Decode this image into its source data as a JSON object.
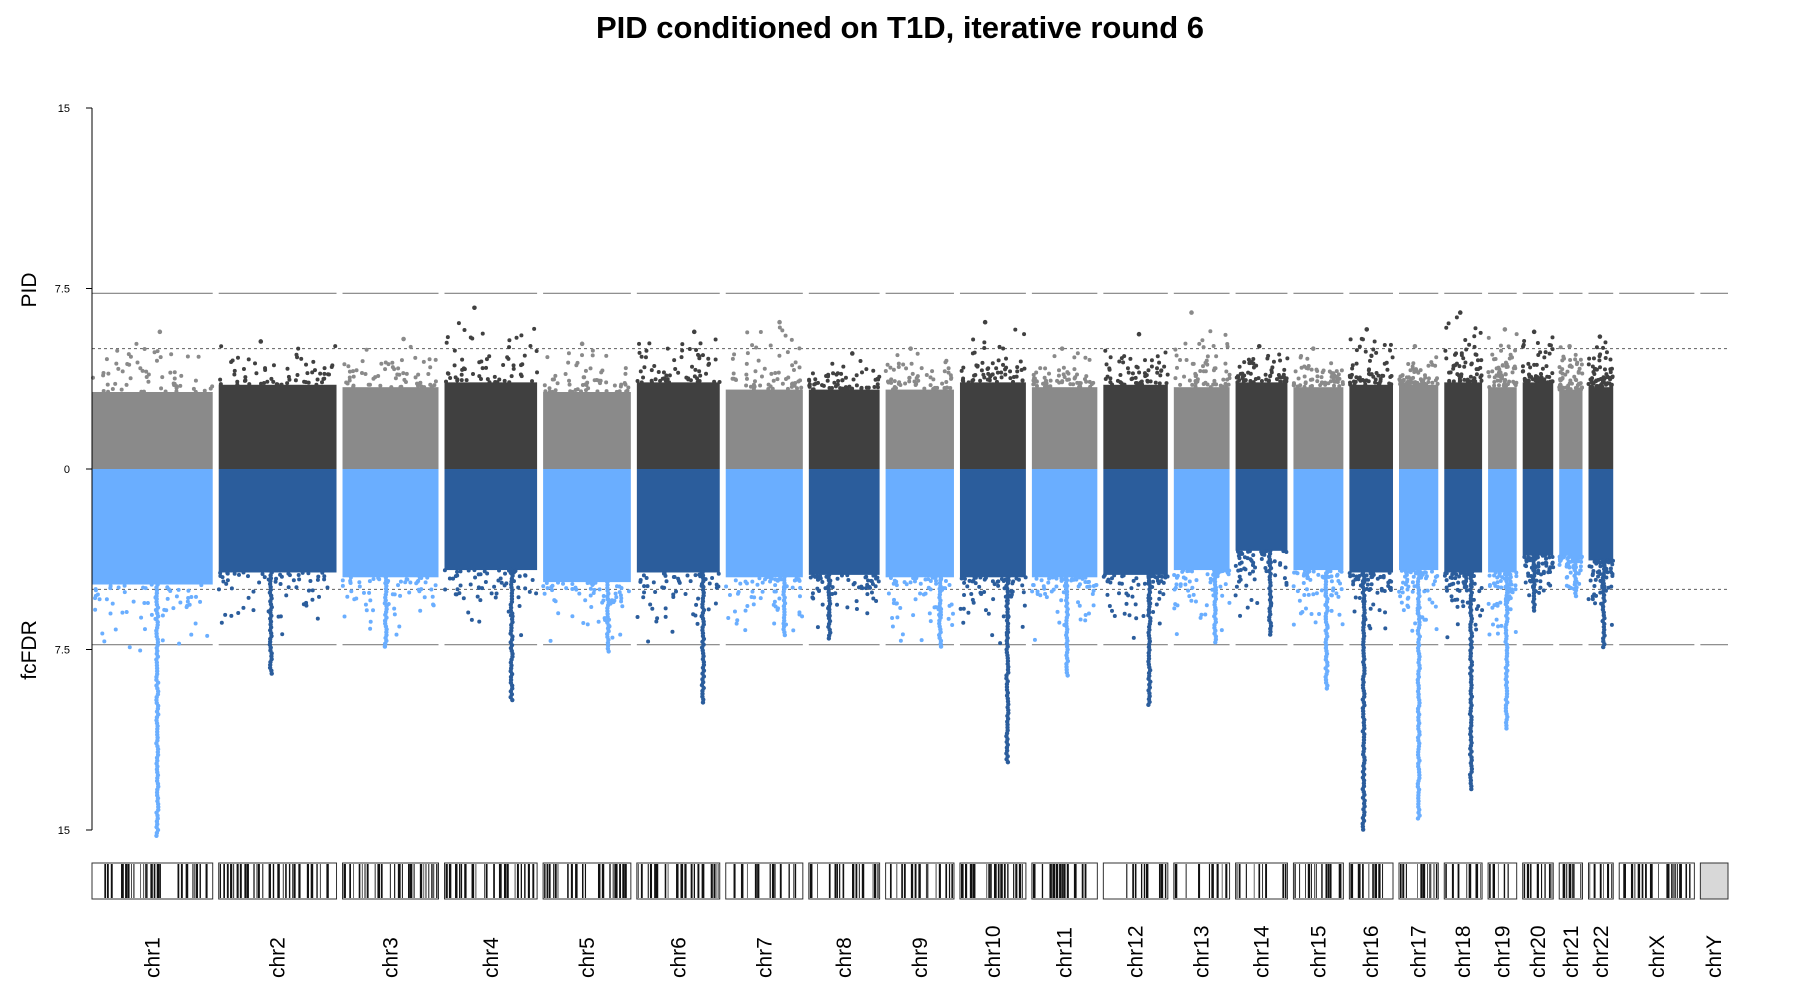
{
  "chart_data": {
    "type": "scatter",
    "title": "PID conditioned on T1D, iterative round 6",
    "top_label": "PID",
    "bottom_label": "fcFDR",
    "ylim_top": [
      0,
      15
    ],
    "ylim_bottom": [
      0,
      15
    ],
    "y_ticks": [
      "0",
      "7.5",
      "15"
    ],
    "y_tick_values": [
      0,
      7.5,
      15
    ],
    "thresholds": {
      "top_dashed": 7.3,
      "top_dotted": 5.0,
      "bottom_dashed": 7.3,
      "bottom_dotted": 5.0
    },
    "colors": {
      "top_light": "#8a8a8a",
      "top_dark": "#404040",
      "bottom_light": "#6aaeff",
      "bottom_dark": "#2b5d9c",
      "threshold_line": "#808080"
    },
    "chromosomes": [
      {
        "label": "chr1",
        "top_max": 5.7,
        "top_band": 3.2,
        "bottom_max": 15.3,
        "bottom_band": 4.8
      },
      {
        "label": "chr2",
        "top_max": 5.3,
        "top_band": 3.5,
        "bottom_max": 8.6,
        "bottom_band": 4.3
      },
      {
        "label": "chr3",
        "top_max": 5.4,
        "top_band": 3.4,
        "bottom_max": 7.4,
        "bottom_band": 4.5
      },
      {
        "label": "chr4",
        "top_max": 6.7,
        "top_band": 3.6,
        "bottom_max": 9.6,
        "bottom_band": 4.2
      },
      {
        "label": "chr5",
        "top_max": 5.2,
        "top_band": 3.2,
        "bottom_max": 7.6,
        "bottom_band": 4.7
      },
      {
        "label": "chr6",
        "top_max": 5.7,
        "top_band": 3.6,
        "bottom_max": 9.7,
        "bottom_band": 4.3
      },
      {
        "label": "chr7",
        "top_max": 6.1,
        "top_band": 3.3,
        "bottom_max": 7.0,
        "bottom_band": 4.5
      },
      {
        "label": "chr8",
        "top_max": 4.8,
        "top_band": 3.3,
        "bottom_max": 7.1,
        "bottom_band": 4.4
      },
      {
        "label": "chr9",
        "top_max": 5.0,
        "top_band": 3.3,
        "bottom_max": 7.5,
        "bottom_band": 4.5
      },
      {
        "label": "chr10",
        "top_max": 6.1,
        "top_band": 3.6,
        "bottom_max": 12.2,
        "bottom_band": 4.5
      },
      {
        "label": "chr11",
        "top_max": 5.0,
        "top_band": 3.4,
        "bottom_max": 8.6,
        "bottom_band": 4.5
      },
      {
        "label": "chr12",
        "top_max": 5.6,
        "top_band": 3.5,
        "bottom_max": 9.9,
        "bottom_band": 4.4
      },
      {
        "label": "chr13",
        "top_max": 6.5,
        "top_band": 3.4,
        "bottom_max": 7.3,
        "bottom_band": 4.2
      },
      {
        "label": "chr14",
        "top_max": 5.1,
        "top_band": 3.6,
        "bottom_max": 6.9,
        "bottom_band": 3.4
      },
      {
        "label": "chr15",
        "top_max": 5.0,
        "top_band": 3.4,
        "bottom_max": 9.2,
        "bottom_band": 4.2
      },
      {
        "label": "chr16",
        "top_max": 5.8,
        "top_band": 3.5,
        "bottom_max": 15.0,
        "bottom_band": 4.3
      },
      {
        "label": "chr17",
        "top_max": 5.1,
        "top_band": 3.5,
        "bottom_max": 14.6,
        "bottom_band": 4.2
      },
      {
        "label": "chr18",
        "top_max": 6.5,
        "top_band": 3.6,
        "bottom_max": 13.3,
        "bottom_band": 4.3
      },
      {
        "label": "chr19",
        "top_max": 5.8,
        "top_band": 3.4,
        "bottom_max": 10.8,
        "bottom_band": 4.3
      },
      {
        "label": "chr20",
        "top_max": 5.7,
        "top_band": 3.6,
        "bottom_max": 6.0,
        "bottom_band": 3.6
      },
      {
        "label": "chr21",
        "top_max": 5.1,
        "top_band": 3.3,
        "bottom_max": 5.4,
        "bottom_band": 3.6
      },
      {
        "label": "chr22",
        "top_max": 5.5,
        "top_band": 3.4,
        "bottom_max": 7.5,
        "bottom_band": 3.8
      },
      {
        "label": "chrX",
        "top_max": 0,
        "top_band": 0,
        "bottom_max": 0,
        "bottom_band": 0
      },
      {
        "label": "chrY",
        "top_max": 0,
        "top_band": 0,
        "bottom_max": 0,
        "bottom_band": 0
      }
    ]
  }
}
